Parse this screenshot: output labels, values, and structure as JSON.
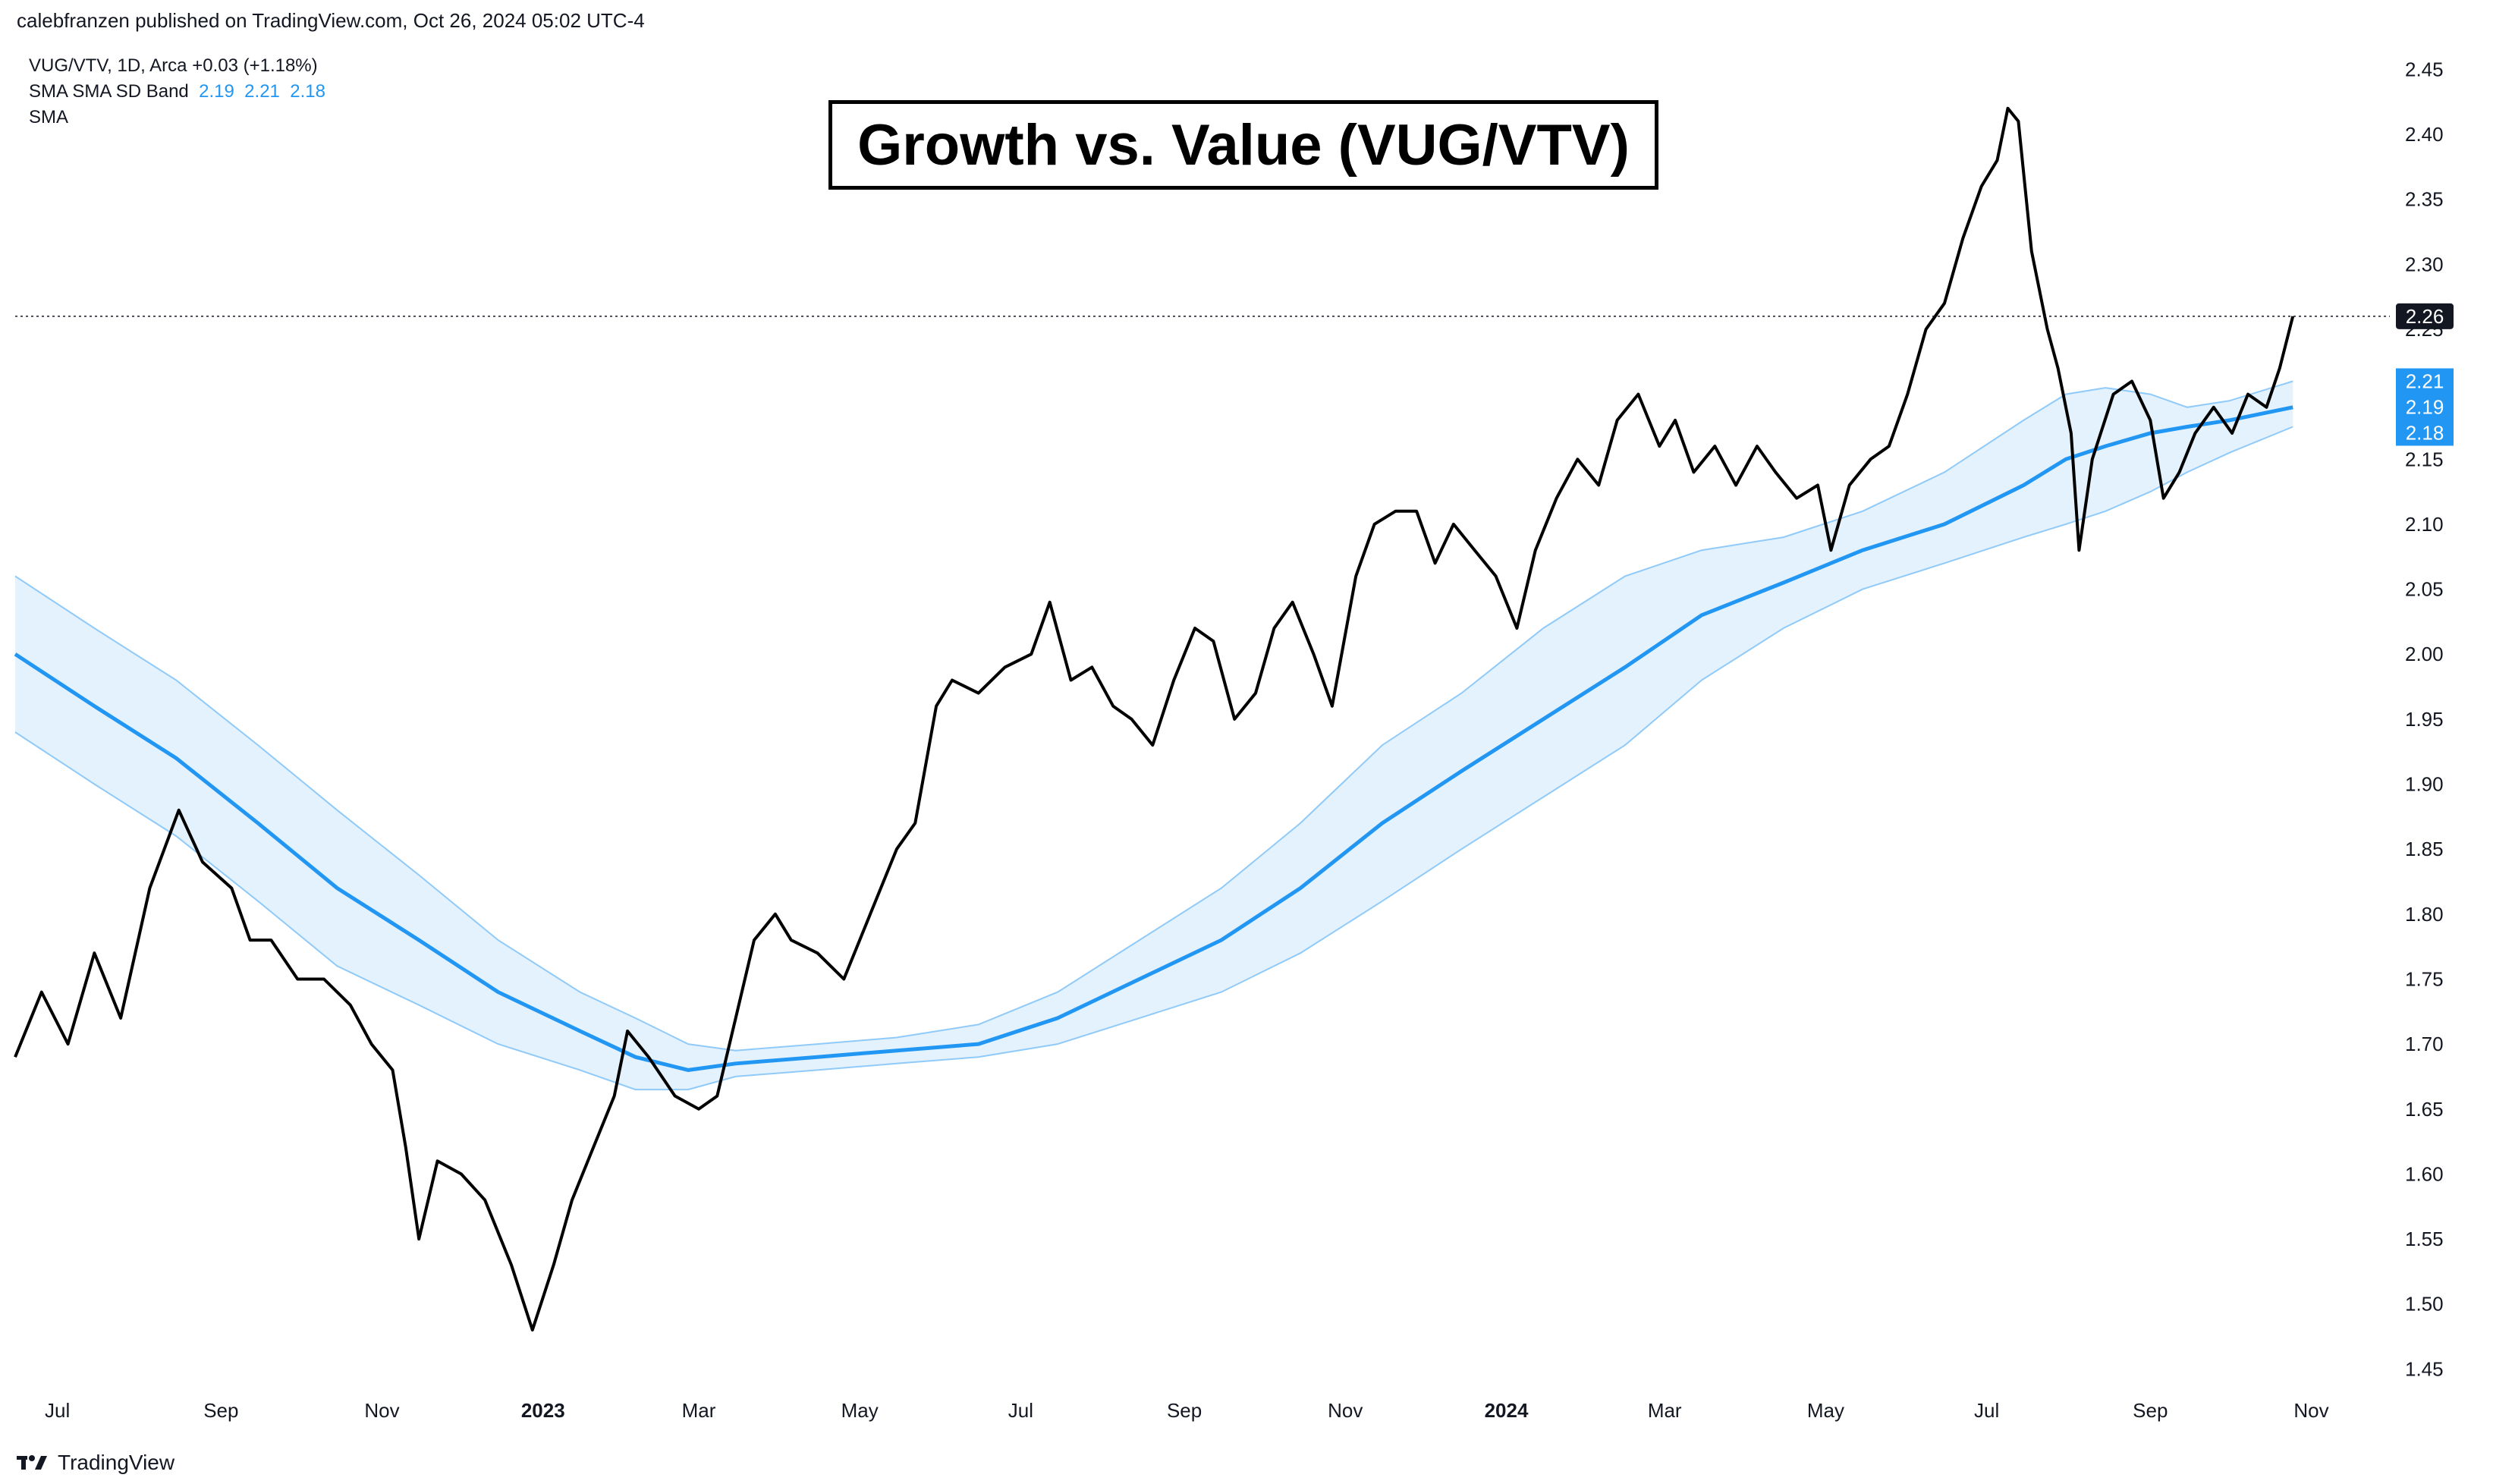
{
  "header": {
    "text": "calebfranzen published on TradingView.com, Oct 26, 2024 05:02 UTC-4"
  },
  "legend": {
    "line1": "VUG/VTV, 1D, Arca  +0.03 (+1.18%)",
    "line2_label": "SMA SMA SD Band",
    "line2_values": [
      "2.19",
      "2.21",
      "2.18"
    ],
    "line3": "SMA"
  },
  "footer": {
    "brand": "TradingView"
  },
  "colors": {
    "price": "#000000",
    "sma": "#2196f3",
    "band_fill": "#e3f2fd",
    "band_line": "#90caf9",
    "axis_text": "#131722",
    "label_bg_blue": "#2196f3",
    "label_bg_dark": "#131722"
  },
  "chart_data": {
    "type": "line",
    "title": "Growth vs. Value (VUG/VTV)",
    "x_ticks": [
      {
        "label": "Jul",
        "date": "2022-07-01",
        "bold": false
      },
      {
        "label": "Sep",
        "date": "2022-09-01",
        "bold": false
      },
      {
        "label": "Nov",
        "date": "2022-11-01",
        "bold": false
      },
      {
        "label": "2023",
        "date": "2023-01-01",
        "bold": true
      },
      {
        "label": "Mar",
        "date": "2023-03-01",
        "bold": false
      },
      {
        "label": "May",
        "date": "2023-05-01",
        "bold": false
      },
      {
        "label": "Jul",
        "date": "2023-07-01",
        "bold": false
      },
      {
        "label": "Sep",
        "date": "2023-09-01",
        "bold": false
      },
      {
        "label": "Nov",
        "date": "2023-11-01",
        "bold": false
      },
      {
        "label": "2024",
        "date": "2024-01-01",
        "bold": true
      },
      {
        "label": "Mar",
        "date": "2024-03-01",
        "bold": false
      },
      {
        "label": "May",
        "date": "2024-05-01",
        "bold": false
      },
      {
        "label": "Jul",
        "date": "2024-07-01",
        "bold": false
      },
      {
        "label": "Sep",
        "date": "2024-09-01",
        "bold": false
      },
      {
        "label": "Nov",
        "date": "2024-11-01",
        "bold": false
      }
    ],
    "y_ticks": [
      "2.45",
      "2.40",
      "2.35",
      "2.30",
      "2.25",
      "2.20",
      "2.15",
      "2.10",
      "2.05",
      "2.00",
      "1.95",
      "1.90",
      "1.85",
      "1.80",
      "1.75",
      "1.70",
      "1.65",
      "1.60",
      "1.55",
      "1.50",
      "1.45"
    ],
    "ylim": [
      1.4,
      2.48
    ],
    "xlim": [
      "2022-06-15",
      "2024-11-25"
    ],
    "last_price": "2.26",
    "last_price_value": 2.26,
    "band_labels": [
      {
        "text": "2.21",
        "value": 2.21
      },
      {
        "text": "2.19",
        "value": 2.19
      },
      {
        "text": "2.18",
        "value": 2.18
      }
    ],
    "series": [
      {
        "name": "VUG/VTV",
        "points": [
          [
            "2022-06-15",
            1.69
          ],
          [
            "2022-06-25",
            1.74
          ],
          [
            "2022-07-05",
            1.7
          ],
          [
            "2022-07-15",
            1.77
          ],
          [
            "2022-07-25",
            1.72
          ],
          [
            "2022-08-05",
            1.82
          ],
          [
            "2022-08-16",
            1.88
          ],
          [
            "2022-08-25",
            1.84
          ],
          [
            "2022-09-05",
            1.82
          ],
          [
            "2022-09-12",
            1.78
          ],
          [
            "2022-09-20",
            1.78
          ],
          [
            "2022-09-30",
            1.75
          ],
          [
            "2022-10-10",
            1.75
          ],
          [
            "2022-10-20",
            1.73
          ],
          [
            "2022-10-28",
            1.7
          ],
          [
            "2022-11-05",
            1.68
          ],
          [
            "2022-11-10",
            1.62
          ],
          [
            "2022-11-15",
            1.55
          ],
          [
            "2022-11-22",
            1.61
          ],
          [
            "2022-12-01",
            1.6
          ],
          [
            "2022-12-10",
            1.58
          ],
          [
            "2022-12-20",
            1.53
          ],
          [
            "2022-12-28",
            1.48
          ],
          [
            "2023-01-05",
            1.53
          ],
          [
            "2023-01-12",
            1.58
          ],
          [
            "2023-01-20",
            1.62
          ],
          [
            "2023-01-28",
            1.66
          ],
          [
            "2023-02-02",
            1.71
          ],
          [
            "2023-02-10",
            1.69
          ],
          [
            "2023-02-20",
            1.66
          ],
          [
            "2023-03-01",
            1.65
          ],
          [
            "2023-03-08",
            1.66
          ],
          [
            "2023-03-15",
            1.72
          ],
          [
            "2023-03-22",
            1.78
          ],
          [
            "2023-03-30",
            1.8
          ],
          [
            "2023-04-05",
            1.78
          ],
          [
            "2023-04-15",
            1.77
          ],
          [
            "2023-04-25",
            1.75
          ],
          [
            "2023-05-05",
            1.8
          ],
          [
            "2023-05-15",
            1.85
          ],
          [
            "2023-05-22",
            1.87
          ],
          [
            "2023-05-30",
            1.96
          ],
          [
            "2023-06-05",
            1.98
          ],
          [
            "2023-06-15",
            1.97
          ],
          [
            "2023-06-25",
            1.99
          ],
          [
            "2023-07-05",
            2.0
          ],
          [
            "2023-07-12",
            2.04
          ],
          [
            "2023-07-20",
            1.98
          ],
          [
            "2023-07-28",
            1.99
          ],
          [
            "2023-08-05",
            1.96
          ],
          [
            "2023-08-12",
            1.95
          ],
          [
            "2023-08-20",
            1.93
          ],
          [
            "2023-08-28",
            1.98
          ],
          [
            "2023-09-05",
            2.02
          ],
          [
            "2023-09-12",
            2.01
          ],
          [
            "2023-09-20",
            1.95
          ],
          [
            "2023-09-28",
            1.97
          ],
          [
            "2023-10-05",
            2.02
          ],
          [
            "2023-10-12",
            2.04
          ],
          [
            "2023-10-20",
            2.0
          ],
          [
            "2023-10-27",
            1.96
          ],
          [
            "2023-11-05",
            2.06
          ],
          [
            "2023-11-12",
            2.1
          ],
          [
            "2023-11-20",
            2.11
          ],
          [
            "2023-11-28",
            2.11
          ],
          [
            "2023-12-05",
            2.07
          ],
          [
            "2023-12-12",
            2.1
          ],
          [
            "2023-12-20",
            2.08
          ],
          [
            "2023-12-28",
            2.06
          ],
          [
            "2024-01-05",
            2.02
          ],
          [
            "2024-01-12",
            2.08
          ],
          [
            "2024-01-20",
            2.12
          ],
          [
            "2024-01-28",
            2.15
          ],
          [
            "2024-02-05",
            2.13
          ],
          [
            "2024-02-12",
            2.18
          ],
          [
            "2024-02-20",
            2.2
          ],
          [
            "2024-02-28",
            2.16
          ],
          [
            "2024-03-05",
            2.18
          ],
          [
            "2024-03-12",
            2.14
          ],
          [
            "2024-03-20",
            2.16
          ],
          [
            "2024-03-28",
            2.13
          ],
          [
            "2024-04-05",
            2.16
          ],
          [
            "2024-04-12",
            2.14
          ],
          [
            "2024-04-20",
            2.12
          ],
          [
            "2024-04-28",
            2.13
          ],
          [
            "2024-05-03",
            2.08
          ],
          [
            "2024-05-10",
            2.13
          ],
          [
            "2024-05-18",
            2.15
          ],
          [
            "2024-05-25",
            2.16
          ],
          [
            "2024-06-01",
            2.2
          ],
          [
            "2024-06-08",
            2.25
          ],
          [
            "2024-06-15",
            2.27
          ],
          [
            "2024-06-22",
            2.32
          ],
          [
            "2024-06-29",
            2.36
          ],
          [
            "2024-07-05",
            2.38
          ],
          [
            "2024-07-09",
            2.42
          ],
          [
            "2024-07-13",
            2.41
          ],
          [
            "2024-07-18",
            2.31
          ],
          [
            "2024-07-24",
            2.25
          ],
          [
            "2024-07-28",
            2.22
          ],
          [
            "2024-08-02",
            2.17
          ],
          [
            "2024-08-05",
            2.08
          ],
          [
            "2024-08-10",
            2.15
          ],
          [
            "2024-08-18",
            2.2
          ],
          [
            "2024-08-25",
            2.21
          ],
          [
            "2024-09-01",
            2.18
          ],
          [
            "2024-09-06",
            2.12
          ],
          [
            "2024-09-12",
            2.14
          ],
          [
            "2024-09-18",
            2.17
          ],
          [
            "2024-09-25",
            2.19
          ],
          [
            "2024-10-02",
            2.17
          ],
          [
            "2024-10-08",
            2.2
          ],
          [
            "2024-10-15",
            2.19
          ],
          [
            "2024-10-20",
            2.22
          ],
          [
            "2024-10-25",
            2.26
          ]
        ]
      },
      {
        "name": "SMA",
        "points": [
          [
            "2022-06-15",
            2.0
          ],
          [
            "2022-07-15",
            1.96
          ],
          [
            "2022-08-15",
            1.92
          ],
          [
            "2022-09-15",
            1.87
          ],
          [
            "2022-10-15",
            1.82
          ],
          [
            "2022-11-15",
            1.78
          ],
          [
            "2022-12-15",
            1.74
          ],
          [
            "2023-01-15",
            1.71
          ],
          [
            "2023-02-05",
            1.69
          ],
          [
            "2023-02-25",
            1.68
          ],
          [
            "2023-03-15",
            1.685
          ],
          [
            "2023-04-15",
            1.69
          ],
          [
            "2023-05-15",
            1.695
          ],
          [
            "2023-06-15",
            1.7
          ],
          [
            "2023-07-15",
            1.72
          ],
          [
            "2023-08-15",
            1.75
          ],
          [
            "2023-09-15",
            1.78
          ],
          [
            "2023-10-15",
            1.82
          ],
          [
            "2023-11-15",
            1.87
          ],
          [
            "2023-12-15",
            1.91
          ],
          [
            "2024-01-15",
            1.95
          ],
          [
            "2024-02-15",
            1.99
          ],
          [
            "2024-03-15",
            2.03
          ],
          [
            "2024-04-15",
            2.055
          ],
          [
            "2024-05-15",
            2.08
          ],
          [
            "2024-06-15",
            2.1
          ],
          [
            "2024-07-15",
            2.13
          ],
          [
            "2024-07-31",
            2.15
          ],
          [
            "2024-08-15",
            2.16
          ],
          [
            "2024-09-01",
            2.17
          ],
          [
            "2024-09-15",
            2.175
          ],
          [
            "2024-10-01",
            2.18
          ],
          [
            "2024-10-25",
            2.19
          ]
        ]
      },
      {
        "name": "SMA SD Band Upper",
        "points": [
          [
            "2022-06-15",
            2.06
          ],
          [
            "2022-07-15",
            2.02
          ],
          [
            "2022-08-15",
            1.98
          ],
          [
            "2022-09-15",
            1.93
          ],
          [
            "2022-10-15",
            1.88
          ],
          [
            "2022-11-15",
            1.83
          ],
          [
            "2022-12-15",
            1.78
          ],
          [
            "2023-01-15",
            1.74
          ],
          [
            "2023-02-05",
            1.72
          ],
          [
            "2023-02-25",
            1.7
          ],
          [
            "2023-03-15",
            1.695
          ],
          [
            "2023-04-15",
            1.7
          ],
          [
            "2023-05-15",
            1.705
          ],
          [
            "2023-06-15",
            1.715
          ],
          [
            "2023-07-15",
            1.74
          ],
          [
            "2023-08-15",
            1.78
          ],
          [
            "2023-09-15",
            1.82
          ],
          [
            "2023-10-15",
            1.87
          ],
          [
            "2023-11-15",
            1.93
          ],
          [
            "2023-12-15",
            1.97
          ],
          [
            "2024-01-15",
            2.02
          ],
          [
            "2024-02-15",
            2.06
          ],
          [
            "2024-03-15",
            2.08
          ],
          [
            "2024-04-15",
            2.09
          ],
          [
            "2024-05-15",
            2.11
          ],
          [
            "2024-06-15",
            2.14
          ],
          [
            "2024-07-15",
            2.18
          ],
          [
            "2024-07-31",
            2.2
          ],
          [
            "2024-08-15",
            2.205
          ],
          [
            "2024-09-01",
            2.2
          ],
          [
            "2024-09-15",
            2.19
          ],
          [
            "2024-10-01",
            2.195
          ],
          [
            "2024-10-25",
            2.21
          ]
        ]
      },
      {
        "name": "SMA SD Band Lower",
        "points": [
          [
            "2022-06-15",
            1.94
          ],
          [
            "2022-07-15",
            1.9
          ],
          [
            "2022-08-15",
            1.86
          ],
          [
            "2022-09-15",
            1.81
          ],
          [
            "2022-10-15",
            1.76
          ],
          [
            "2022-11-15",
            1.73
          ],
          [
            "2022-12-15",
            1.7
          ],
          [
            "2023-01-15",
            1.68
          ],
          [
            "2023-02-05",
            1.665
          ],
          [
            "2023-02-25",
            1.665
          ],
          [
            "2023-03-15",
            1.675
          ],
          [
            "2023-04-15",
            1.68
          ],
          [
            "2023-05-15",
            1.685
          ],
          [
            "2023-06-15",
            1.69
          ],
          [
            "2023-07-15",
            1.7
          ],
          [
            "2023-08-15",
            1.72
          ],
          [
            "2023-09-15",
            1.74
          ],
          [
            "2023-10-15",
            1.77
          ],
          [
            "2023-11-15",
            1.81
          ],
          [
            "2023-12-15",
            1.85
          ],
          [
            "2024-01-15",
            1.89
          ],
          [
            "2024-02-15",
            1.93
          ],
          [
            "2024-03-15",
            1.98
          ],
          [
            "2024-04-15",
            2.02
          ],
          [
            "2024-05-15",
            2.05
          ],
          [
            "2024-06-15",
            2.07
          ],
          [
            "2024-07-15",
            2.09
          ],
          [
            "2024-07-31",
            2.1
          ],
          [
            "2024-08-15",
            2.11
          ],
          [
            "2024-09-01",
            2.125
          ],
          [
            "2024-09-15",
            2.14
          ],
          [
            "2024-10-01",
            2.155
          ],
          [
            "2024-10-25",
            2.175
          ]
        ]
      }
    ]
  }
}
